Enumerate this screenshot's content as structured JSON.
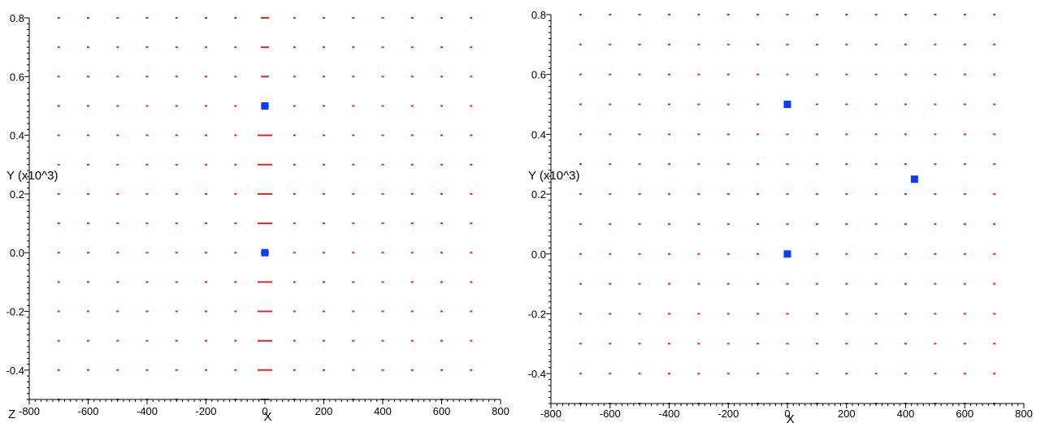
{
  "chart_data": [
    {
      "type": "scatter",
      "xlabel": "X",
      "ylabel": "Y (x10^3)",
      "corner_label": "Z",
      "xlim": [
        -800,
        800
      ],
      "ylim": [
        -0.5,
        0.8
      ],
      "x_ticks": [
        "-800",
        "-600",
        "-400",
        "-200",
        "0",
        "200",
        "400",
        "600",
        "800"
      ],
      "y_ticks": [
        "-0.4",
        "-0.2",
        "0.0",
        "0.2",
        "0.4",
        "0.6",
        "0.8"
      ],
      "grid_x_step": 100,
      "grid_y_step": 0.1,
      "vector_color": "#e8231d",
      "marker_color": "#0a3cff",
      "markers": [
        {
          "x": 0,
          "y": 0.5
        },
        {
          "x": 0,
          "y": 0.0
        }
      ],
      "elongated_column_x": 0,
      "elongated_rows_y": [
        0.1,
        0.2,
        0.3,
        0.4,
        -0.1,
        -0.2,
        -0.3,
        -0.4
      ]
    },
    {
      "type": "scatter",
      "xlabel": "X",
      "ylabel": "Y (x10^3)",
      "xlim": [
        -800,
        800
      ],
      "ylim": [
        -0.5,
        0.8
      ],
      "x_ticks": [
        "-800",
        "-600",
        "-400",
        "-200",
        "0",
        "200",
        "400",
        "600",
        "800"
      ],
      "y_ticks": [
        "-0.4",
        "-0.2",
        "0.0",
        "0.2",
        "0.4",
        "0.6",
        "0.8"
      ],
      "grid_x_step": 100,
      "grid_y_step": 0.1,
      "vector_color": "#e8231d",
      "marker_color": "#0a3cff",
      "markers": [
        {
          "x": 0,
          "y": 0.5
        },
        {
          "x": 0,
          "y": 0.0
        },
        {
          "x": 430,
          "y": 0.25
        }
      ],
      "elongated_column_x": null,
      "elongated_rows_y": []
    }
  ]
}
